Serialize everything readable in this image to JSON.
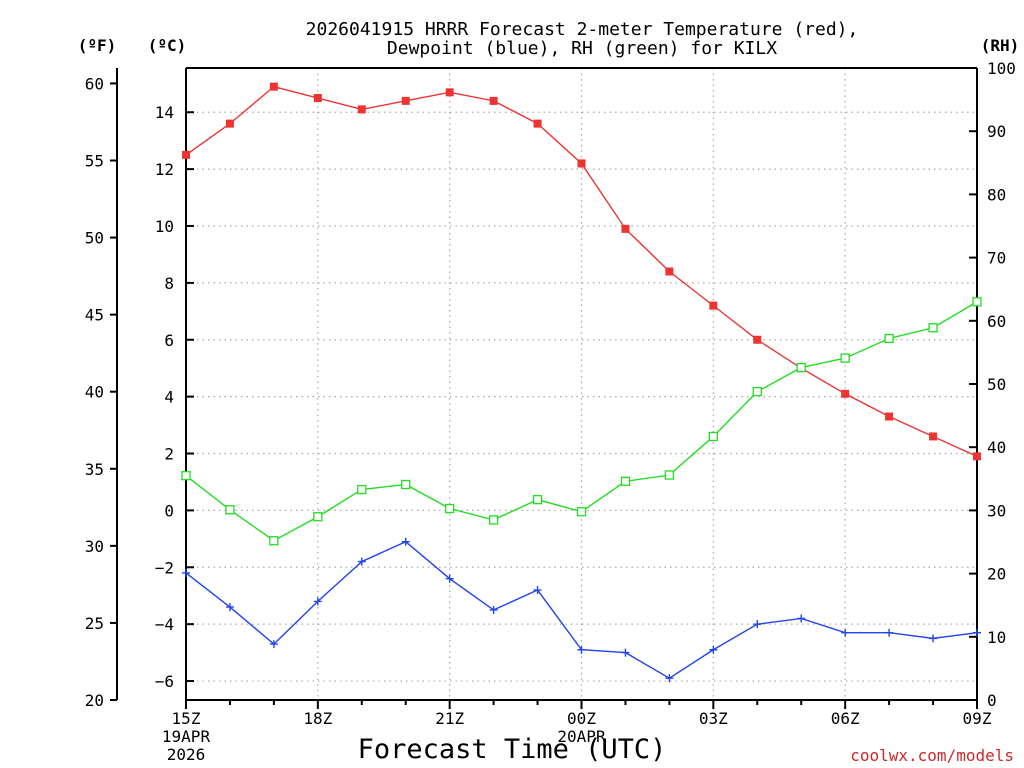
{
  "chart_data": {
    "type": "line",
    "title_lines": [
      "2026041915 HRRR Forecast 2-meter Temperature (red),",
      "Dewpoint (blue), RH (green) for KILX"
    ],
    "xlabel": "Forecast Time (UTC)",
    "credit": "coolwx.com/models",
    "x_tick_labels": [
      "15Z",
      "18Z",
      "21Z",
      "00Z",
      "03Z",
      "06Z",
      "09Z"
    ],
    "x_tick_hours": [
      0,
      3,
      6,
      9,
      12,
      15,
      18
    ],
    "x_sub_labels": [
      {
        "hour": 0,
        "lines": [
          "19APR",
          "2026"
        ]
      },
      {
        "hour": 9,
        "lines": [
          "20APR"
        ]
      }
    ],
    "x_range_hours": [
      0,
      18
    ],
    "axes": {
      "fahrenheit": {
        "unit": "(ºF)",
        "range": [
          20,
          61
        ],
        "ticks": [
          20,
          25,
          30,
          35,
          40,
          45,
          50,
          55,
          60
        ]
      },
      "celsius": {
        "unit": "(ºC)",
        "range": [
          -6.6667,
          15.5556
        ],
        "ticks": [
          -6,
          -4,
          -2,
          0,
          2,
          4,
          6,
          8,
          10,
          12,
          14
        ]
      },
      "rh": {
        "unit": "(RH)",
        "range": [
          0,
          100
        ],
        "ticks": [
          0,
          10,
          20,
          30,
          40,
          50,
          60,
          70,
          80,
          90,
          100
        ]
      }
    },
    "grid": true,
    "colors": {
      "temperature": "#ee3333",
      "dewpoint": "#2244ee",
      "rh": "#22dd22",
      "grid": "#aaaaaa",
      "axis": "#000000"
    },
    "hours": [
      0,
      1,
      2,
      3,
      4,
      5,
      6,
      7,
      8,
      9,
      10,
      11,
      12,
      13,
      14,
      15,
      16,
      17,
      18
    ],
    "series": [
      {
        "name": "Temperature",
        "axis": "celsius",
        "marker": "filled-square",
        "values": [
          12.5,
          13.6,
          14.9,
          14.5,
          14.1,
          14.4,
          14.7,
          14.4,
          13.6,
          12.2,
          9.9,
          8.4,
          7.2,
          6.0,
          5.0,
          4.1,
          3.3,
          2.6,
          1.9
        ]
      },
      {
        "name": "Dewpoint",
        "axis": "celsius",
        "marker": "plus",
        "values": [
          -2.2,
          -3.4,
          -4.7,
          -3.2,
          -1.8,
          -1.1,
          -2.4,
          -3.5,
          -2.8,
          -4.9,
          -5.0,
          -5.9,
          -4.9,
          -4.0,
          -3.8,
          -4.3,
          -4.3,
          -4.5,
          -4.3
        ]
      },
      {
        "name": "RH",
        "axis": "rh",
        "marker": "open-square",
        "values": [
          35.5,
          30.1,
          25.2,
          29.0,
          33.3,
          34.1,
          30.3,
          28.5,
          31.7,
          29.8,
          34.6,
          35.6,
          41.7,
          48.8,
          52.6,
          54.1,
          57.2,
          58.9,
          63.0
        ]
      }
    ]
  }
}
